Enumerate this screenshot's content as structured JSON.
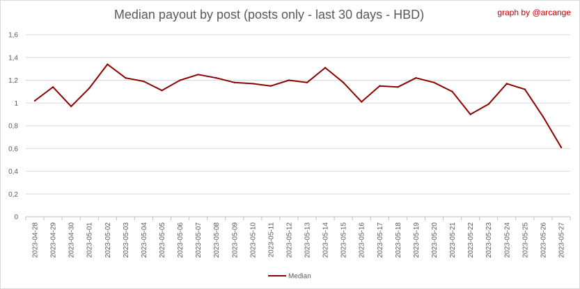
{
  "chart_data": {
    "type": "line",
    "title": "Median payout by post (posts only - last 30 days - HBD)",
    "credit": "graph by @arcange",
    "xlabel": "",
    "ylabel": "",
    "ylim": [
      0,
      1.6
    ],
    "y_ticks": [
      "0",
      "0,2",
      "0,4",
      "0,6",
      "0,8",
      "1",
      "1,2",
      "1,4",
      "1,6"
    ],
    "grid": true,
    "legend_position": "bottom",
    "line_color": "#8b0000",
    "x": [
      "2023-04-28",
      "2023-04-29",
      "2023-04-30",
      "2023-05-01",
      "2023-05-02",
      "2023-05-03",
      "2023-05-04",
      "2023-05-05",
      "2023-05-06",
      "2023-05-07",
      "2023-05-08",
      "2023-05-09",
      "2023-05-10",
      "2023-05-11",
      "2023-05-12",
      "2023-05-13",
      "2023-05-14",
      "2023-05-15",
      "2023-05-16",
      "2023-05-17",
      "2023-05-18",
      "2023-05-19",
      "2023-05-20",
      "2023-05-21",
      "2023-05-22",
      "2023-05-23",
      "2023-05-24",
      "2023-05-25",
      "2023-05-26",
      "2023-05-27"
    ],
    "series": [
      {
        "name": "Median",
        "values": [
          1.02,
          1.14,
          0.97,
          1.13,
          1.34,
          1.22,
          1.19,
          1.11,
          1.2,
          1.25,
          1.22,
          1.18,
          1.17,
          1.15,
          1.2,
          1.18,
          1.31,
          1.18,
          1.01,
          1.15,
          1.14,
          1.22,
          1.18,
          1.1,
          0.9,
          0.99,
          1.17,
          1.12,
          0.88,
          0.61
        ]
      }
    ]
  }
}
